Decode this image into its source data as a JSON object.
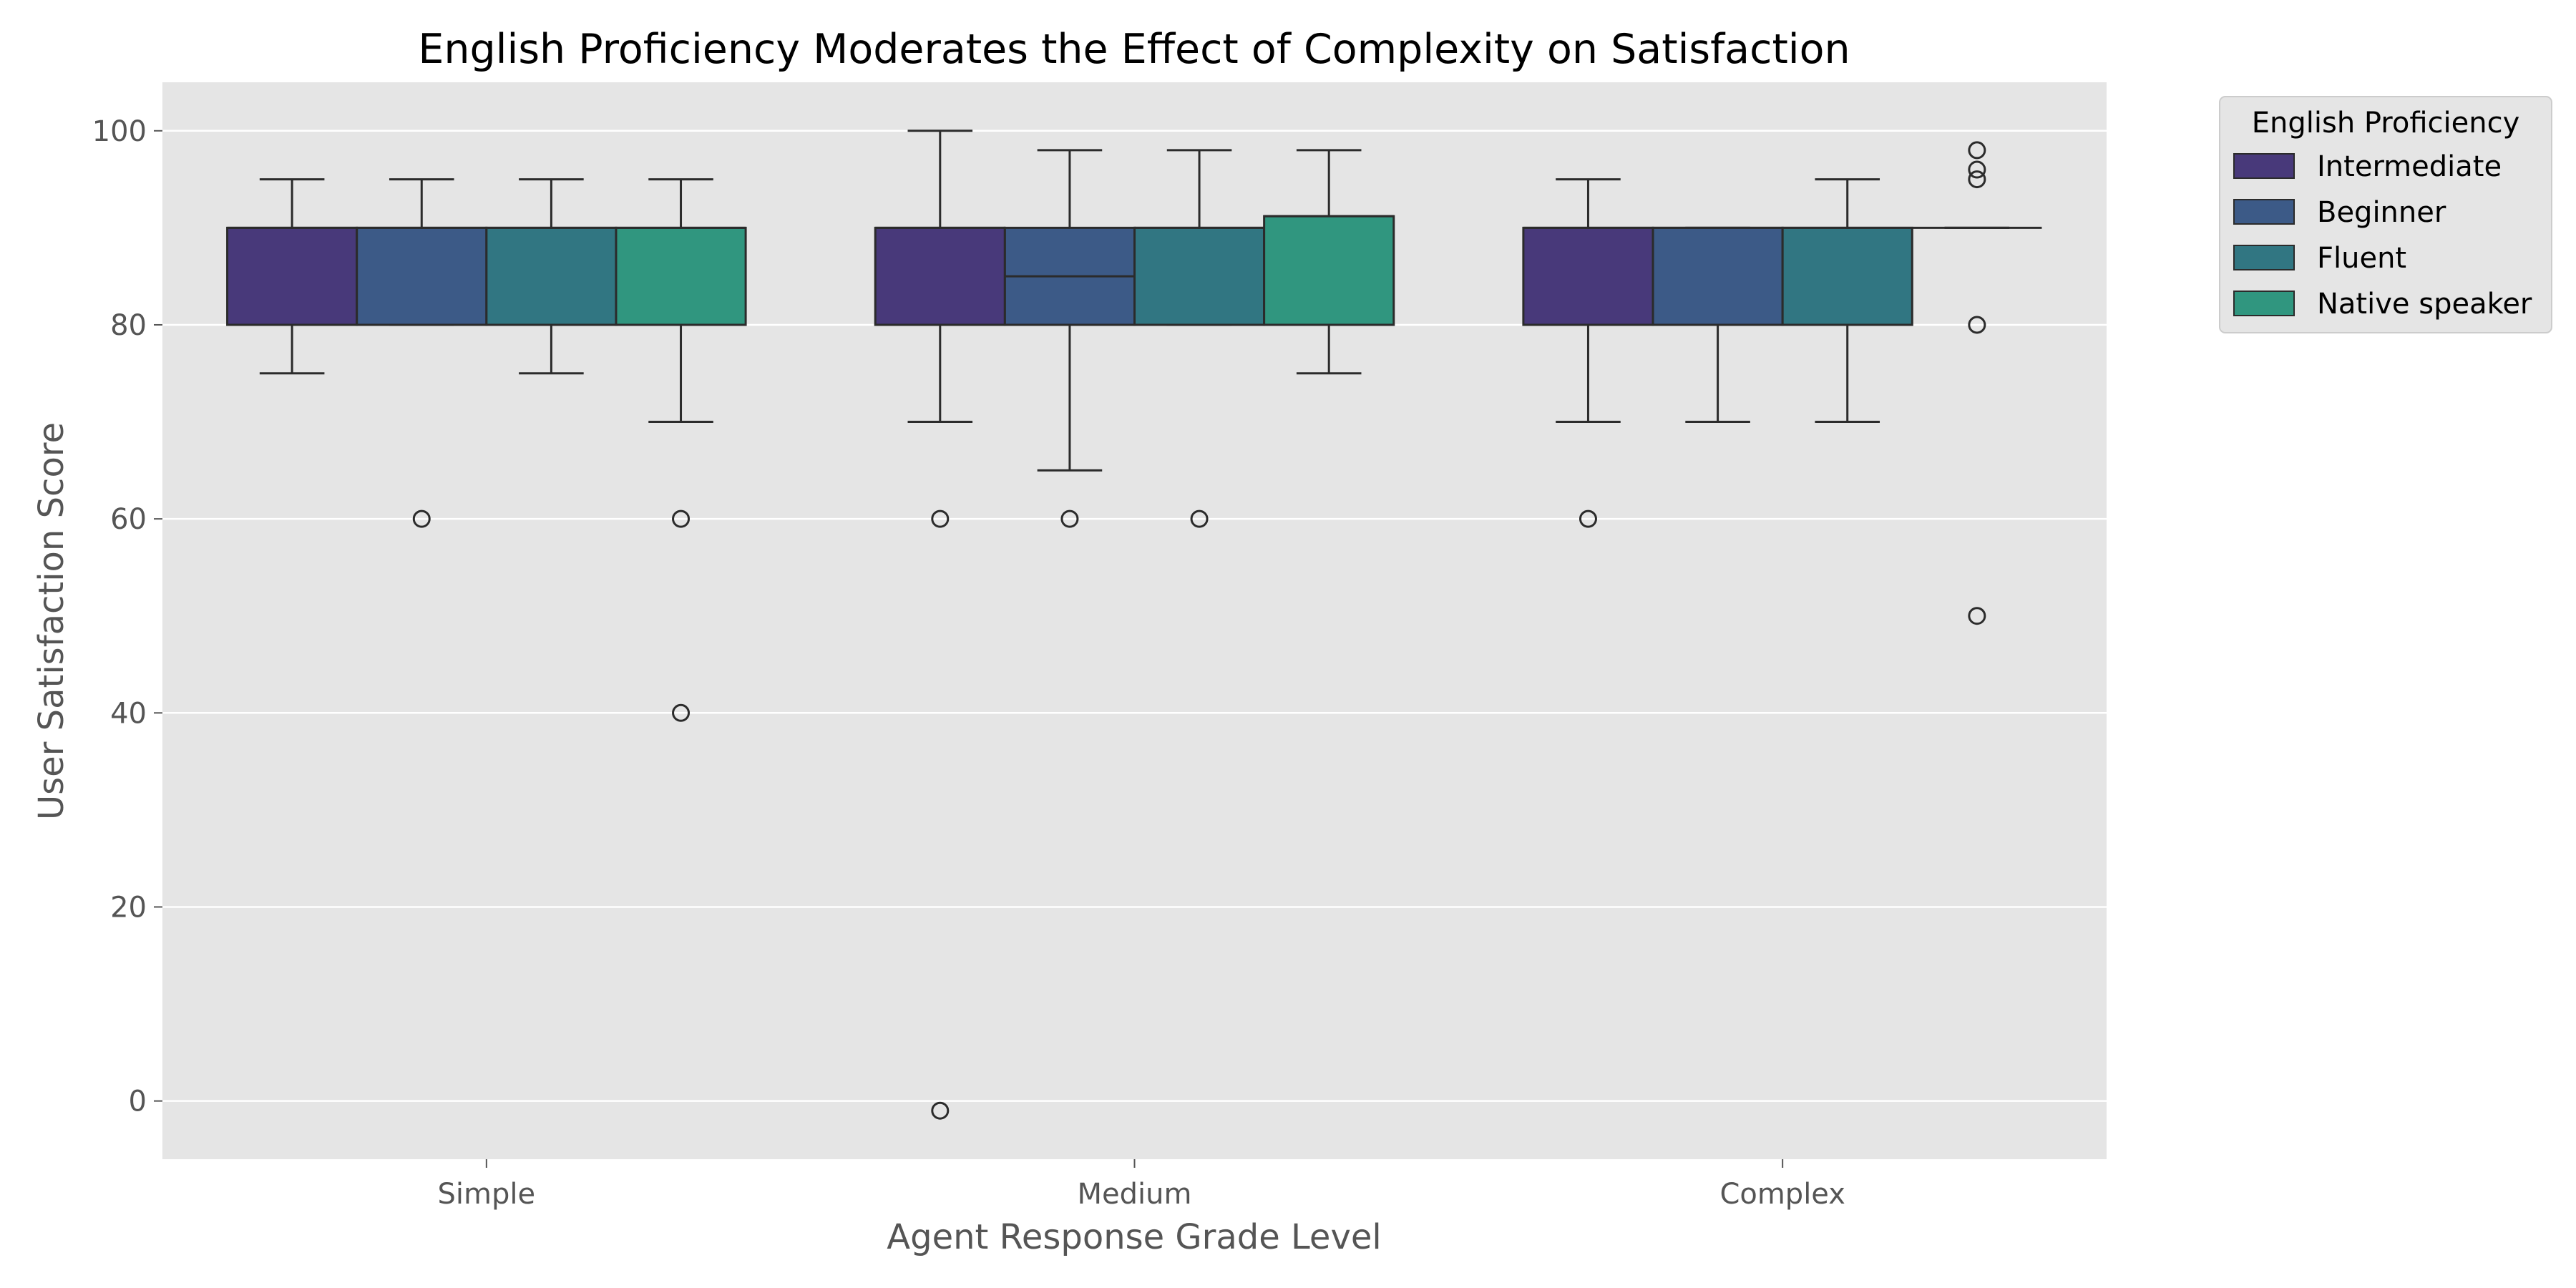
{
  "chart_data": {
    "type": "box",
    "title": "English Proficiency Moderates the Effect of Complexity on Satisfaction",
    "xlabel": "Agent Response Grade Level",
    "ylabel": "User Satisfaction Score",
    "categories": [
      "Simple",
      "Medium",
      "Complex"
    ],
    "yticks": [
      0,
      20,
      40,
      60,
      80,
      100
    ],
    "ylim": [
      -6,
      105
    ],
    "grid": true,
    "legend": {
      "title": "English Proficiency",
      "placement": "outside-top-right",
      "entries": [
        "Intermediate",
        "Beginner",
        "Fluent",
        "Native speaker"
      ]
    },
    "series": [
      {
        "name": "Intermediate",
        "color": "#48397a",
        "boxes": [
          {
            "q1": 80,
            "median": 90,
            "q3": 90,
            "whisker_low": 75,
            "whisker_high": 95,
            "outliers": []
          },
          {
            "q1": 80,
            "median": 90,
            "q3": 90,
            "whisker_low": 70,
            "whisker_high": 100,
            "outliers": [
              60,
              -1
            ]
          },
          {
            "q1": 80,
            "median": 90,
            "q3": 90,
            "whisker_low": 70,
            "whisker_high": 95,
            "outliers": [
              60
            ]
          }
        ]
      },
      {
        "name": "Beginner",
        "color": "#3c5a87",
        "boxes": [
          {
            "q1": 80,
            "median": 90,
            "q3": 90,
            "whisker_low": 80,
            "whisker_high": 95,
            "outliers": [
              60
            ]
          },
          {
            "q1": 80,
            "median": 85,
            "q3": 90,
            "whisker_low": 65,
            "whisker_high": 98,
            "outliers": [
              60
            ]
          },
          {
            "q1": 80,
            "median": 90,
            "q3": 90,
            "whisker_low": 70,
            "whisker_high": 90,
            "outliers": []
          }
        ]
      },
      {
        "name": "Fluent",
        "color": "#317682",
        "boxes": [
          {
            "q1": 80,
            "median": 90,
            "q3": 90,
            "whisker_low": 75,
            "whisker_high": 95,
            "outliers": []
          },
          {
            "q1": 80,
            "median": 90,
            "q3": 90,
            "whisker_low": 80,
            "whisker_high": 98,
            "outliers": [
              60
            ]
          },
          {
            "q1": 80,
            "median": 90,
            "q3": 90,
            "whisker_low": 70,
            "whisker_high": 95,
            "outliers": []
          }
        ]
      },
      {
        "name": "Native speaker",
        "color": "#30967f",
        "boxes": [
          {
            "q1": 80,
            "median": 90,
            "q3": 90,
            "whisker_low": 70,
            "whisker_high": 95,
            "outliers": [
              60,
              40
            ]
          },
          {
            "q1": 80,
            "median": 91.2,
            "q3": 91.2,
            "whisker_low": 75,
            "whisker_high": 98,
            "outliers": []
          },
          {
            "q1": 90,
            "median": 90,
            "q3": 90,
            "whisker_low": 90,
            "whisker_high": 90,
            "outliers": [
              98,
              96,
              95,
              80,
              50
            ]
          }
        ]
      }
    ]
  }
}
